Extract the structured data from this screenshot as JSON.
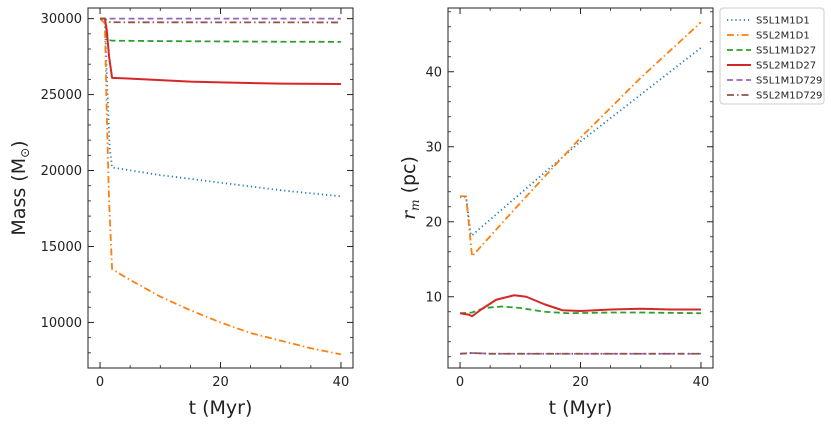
{
  "chart_data": [
    {
      "type": "line",
      "panel": "left",
      "xlabel": "t (Myr)",
      "ylabel_main": "Mass (M",
      "ylabel_symbol": "⊙",
      "ylabel_close": ")",
      "xlim": [
        -2,
        42
      ],
      "ylim": [
        7000,
        30700
      ],
      "xticks": [
        0,
        20,
        40
      ],
      "xtick_labels": [
        "0",
        "20",
        "40"
      ],
      "yticks": [
        10000,
        15000,
        20000,
        25000,
        30000
      ],
      "ytick_labels": [
        "10000",
        "15000",
        "20000",
        "25000",
        "30000"
      ],
      "series": [
        {
          "name": "S5L1M1D1",
          "color": "#1f77b4",
          "dash": "dotted",
          "points": [
            [
              0,
              30000
            ],
            [
              0.8,
              30000
            ],
            [
              1.2,
              25500
            ],
            [
              1.6,
              21500
            ],
            [
              2,
              20200
            ],
            [
              10,
              19700
            ],
            [
              20,
              19200
            ],
            [
              30,
              18700
            ],
            [
              40,
              18300
            ]
          ]
        },
        {
          "name": "S5L2M1D1",
          "color": "#ff7f0e",
          "dash": "dashdot",
          "points": [
            [
              0,
              30000
            ],
            [
              0.8,
              29700
            ],
            [
              1.1,
              24000
            ],
            [
              1.5,
              18000
            ],
            [
              2,
              13500
            ],
            [
              5,
              12800
            ],
            [
              10,
              11700
            ],
            [
              15,
              10800
            ],
            [
              20,
              10000
            ],
            [
              25,
              9300
            ],
            [
              30,
              8800
            ],
            [
              35,
              8300
            ],
            [
              40,
              7900
            ]
          ]
        },
        {
          "name": "S5L1M1D27",
          "color": "#2ca02c",
          "dash": "dashed",
          "points": [
            [
              0,
              30000
            ],
            [
              0.8,
              30000
            ],
            [
              1.2,
              28600
            ],
            [
              2,
              28550
            ],
            [
              10,
              28520
            ],
            [
              20,
              28500
            ],
            [
              30,
              28480
            ],
            [
              40,
              28470
            ]
          ]
        },
        {
          "name": "S5L2M1D27",
          "color": "#d62728",
          "dash": "solid",
          "points": [
            [
              0,
              30000
            ],
            [
              0.8,
              30000
            ],
            [
              1.1,
              29300
            ],
            [
              1.5,
              27500
            ],
            [
              2,
              26100
            ],
            [
              5,
              26050
            ],
            [
              10,
              25950
            ],
            [
              15,
              25850
            ],
            [
              20,
              25800
            ],
            [
              30,
              25720
            ],
            [
              40,
              25700
            ]
          ]
        },
        {
          "name": "S5L1M1D729",
          "color": "#9467bd",
          "dash": "dashed",
          "points": [
            [
              0,
              30000
            ],
            [
              40,
              30000
            ]
          ]
        },
        {
          "name": "S5L2M1D729",
          "color": "#8c564b",
          "dash": "dashdot",
          "points": [
            [
              0,
              30000
            ],
            [
              0.8,
              29990
            ],
            [
              1.6,
              29780
            ],
            [
              2.5,
              29760
            ],
            [
              40,
              29750
            ]
          ]
        }
      ]
    },
    {
      "type": "line",
      "panel": "right",
      "xlabel": "t (Myr)",
      "ylabel_var": "r",
      "ylabel_sub": "m",
      "ylabel_unit": "(pc)",
      "xlim": [
        -2,
        42
      ],
      "ylim": [
        0.5,
        48.5
      ],
      "xticks": [
        0,
        20,
        40
      ],
      "xtick_labels": [
        "0",
        "20",
        "40"
      ],
      "yticks": [
        10,
        20,
        30,
        40
      ],
      "ytick_labels": [
        "10",
        "20",
        "30",
        "40"
      ],
      "legend_position": "outside-right-top",
      "series": [
        {
          "name": "S5L1M1D1",
          "color": "#1f77b4",
          "dash": "dotted",
          "points": [
            [
              0,
              23.3
            ],
            [
              1,
              23.3
            ],
            [
              1.8,
              18.2
            ],
            [
              2,
              18.2
            ],
            [
              20,
              30.7
            ],
            [
              40,
              43.2
            ]
          ]
        },
        {
          "name": "S5L2M1D1",
          "color": "#ff7f0e",
          "dash": "dashdot",
          "points": [
            [
              0,
              23.4
            ],
            [
              1,
              23.4
            ],
            [
              2,
              15.4
            ],
            [
              10,
              22.5
            ],
            [
              20,
              31.2
            ],
            [
              30,
              39.2
            ],
            [
              40,
              46.6
            ]
          ]
        },
        {
          "name": "S5L1M1D27",
          "color": "#2ca02c",
          "dash": "dashed",
          "points": [
            [
              0,
              7.8
            ],
            [
              2,
              7.9
            ],
            [
              4,
              8.5
            ],
            [
              7,
              8.7
            ],
            [
              10,
              8.5
            ],
            [
              14,
              8.0
            ],
            [
              18,
              7.8
            ],
            [
              25,
              7.9
            ],
            [
              30,
              7.9
            ],
            [
              40,
              7.8
            ]
          ]
        },
        {
          "name": "S5L2M1D27",
          "color": "#d62728",
          "dash": "solid",
          "points": [
            [
              0,
              7.8
            ],
            [
              1.5,
              7.6
            ],
            [
              2,
              7.4
            ],
            [
              3.5,
              8.3
            ],
            [
              6,
              9.6
            ],
            [
              9,
              10.2
            ],
            [
              11,
              10.0
            ],
            [
              14,
              9.0
            ],
            [
              17,
              8.2
            ],
            [
              20,
              8.1
            ],
            [
              25,
              8.3
            ],
            [
              30,
              8.4
            ],
            [
              35,
              8.3
            ],
            [
              40,
              8.3
            ]
          ]
        },
        {
          "name": "S5L1M1D729",
          "color": "#9467bd",
          "dash": "dashed",
          "points": [
            [
              0,
              2.4
            ],
            [
              2,
              2.5
            ],
            [
              5,
              2.4
            ],
            [
              40,
              2.4
            ]
          ]
        },
        {
          "name": "S5L2M1D729",
          "color": "#8c564b",
          "dash": "dashdot",
          "points": [
            [
              0,
              2.4
            ],
            [
              2,
              2.5
            ],
            [
              5,
              2.4
            ],
            [
              40,
              2.4
            ]
          ]
        }
      ]
    }
  ]
}
